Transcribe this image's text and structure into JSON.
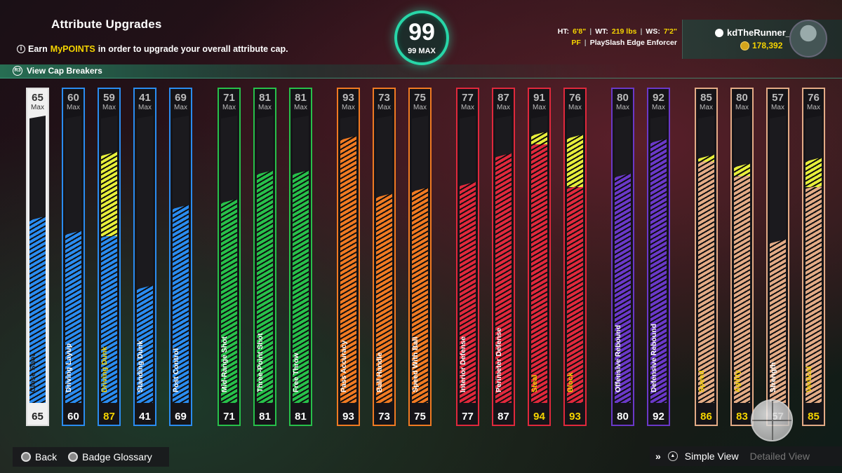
{
  "header": {
    "title": "Attribute Upgrades",
    "note_prefix": "Earn",
    "note_highlight": "MyPOINTS",
    "note_suffix": "in order to upgrade your overall attribute cap.",
    "cap_breakers_label": "View Cap Breakers"
  },
  "overall": {
    "value": "99",
    "max_label": "99 MAX"
  },
  "player": {
    "ht_label": "HT:",
    "ht": "6'8\"",
    "wt_label": "WT:",
    "wt": "219 lbs",
    "ws_label": "WS:",
    "ws": "7'2\"",
    "position": "PF",
    "build": "PlaySlash Edge Enforcer",
    "username": "kdTheRunner_",
    "vc": "178,392"
  },
  "max_label": "Max",
  "colors": {
    "finishing": "#2a8cf0",
    "shooting": "#27c04a",
    "playmaking": "#f07a22",
    "defense": "#e0283c",
    "rebounding": "#6a38c8",
    "physicals": "#e3ab86",
    "upgrade": "#e6ee3a",
    "accent": "#28d6a8"
  },
  "attributes": [
    {
      "name": "Close Shot",
      "group": "finishing",
      "max": "65",
      "current": "65",
      "base": 65,
      "upgraded": false,
      "selected": true
    },
    {
      "name": "Driving Layup",
      "group": "finishing",
      "max": "60",
      "current": "60",
      "base": 60,
      "upgraded": false
    },
    {
      "name": "Driving Dunk",
      "group": "finishing",
      "max": "59",
      "current": "87",
      "base": 59,
      "up": 87,
      "upgraded": true
    },
    {
      "name": "Standing Dunk",
      "group": "finishing",
      "max": "41",
      "current": "41",
      "base": 41,
      "upgraded": false
    },
    {
      "name": "Post Control",
      "group": "finishing",
      "max": "69",
      "current": "69",
      "base": 69,
      "upgraded": false
    },
    {
      "name": "Mid-Range Shot",
      "group": "shooting",
      "max": "71",
      "current": "71",
      "base": 71,
      "upgraded": false
    },
    {
      "name": "Three-Point Shot",
      "group": "shooting",
      "max": "81",
      "current": "81",
      "base": 81,
      "upgraded": false
    },
    {
      "name": "Free Throw",
      "group": "shooting",
      "max": "81",
      "current": "81",
      "base": 81,
      "upgraded": false
    },
    {
      "name": "Pass Accuracy",
      "group": "playmaking",
      "max": "93",
      "current": "93",
      "base": 93,
      "upgraded": false
    },
    {
      "name": "Ball Handle",
      "group": "playmaking",
      "max": "73",
      "current": "73",
      "base": 73,
      "upgraded": false
    },
    {
      "name": "Speed With Ball",
      "group": "playmaking",
      "max": "75",
      "current": "75",
      "base": 75,
      "upgraded": false
    },
    {
      "name": "Interior Defense",
      "group": "defense",
      "max": "77",
      "current": "77",
      "base": 77,
      "upgraded": false
    },
    {
      "name": "Perimeter Defense",
      "group": "defense",
      "max": "87",
      "current": "87",
      "base": 87,
      "upgraded": false
    },
    {
      "name": "Steal",
      "group": "defense",
      "max": "91",
      "current": "94",
      "base": 91,
      "up": 94,
      "upgraded": true
    },
    {
      "name": "Block",
      "group": "defense",
      "max": "76",
      "current": "93",
      "base": 76,
      "up": 93,
      "upgraded": true
    },
    {
      "name": "Offensive Rebound",
      "group": "rebounding",
      "max": "80",
      "current": "80",
      "base": 80,
      "upgraded": false
    },
    {
      "name": "Defensive Rebound",
      "group": "rebounding",
      "max": "92",
      "current": "92",
      "base": 92,
      "upgraded": false
    },
    {
      "name": "Speed",
      "group": "physicals",
      "max": "85",
      "current": "86",
      "base": 85,
      "up": 86,
      "upgraded": true
    },
    {
      "name": "Agility",
      "group": "physicals",
      "max": "80",
      "current": "83",
      "base": 80,
      "up": 83,
      "upgraded": true
    },
    {
      "name": "Strength",
      "group": "physicals",
      "max": "57",
      "current": "57",
      "base": 57,
      "upgraded": false
    },
    {
      "name": "Vertical",
      "group": "physicals",
      "max": "76",
      "current": "85",
      "base": 76,
      "up": 85,
      "upgraded": true
    }
  ],
  "footer": {
    "back": "Back",
    "badge_glossary": "Badge Glossary",
    "simple_view": "Simple View",
    "detailed_view": "Detailed View"
  }
}
